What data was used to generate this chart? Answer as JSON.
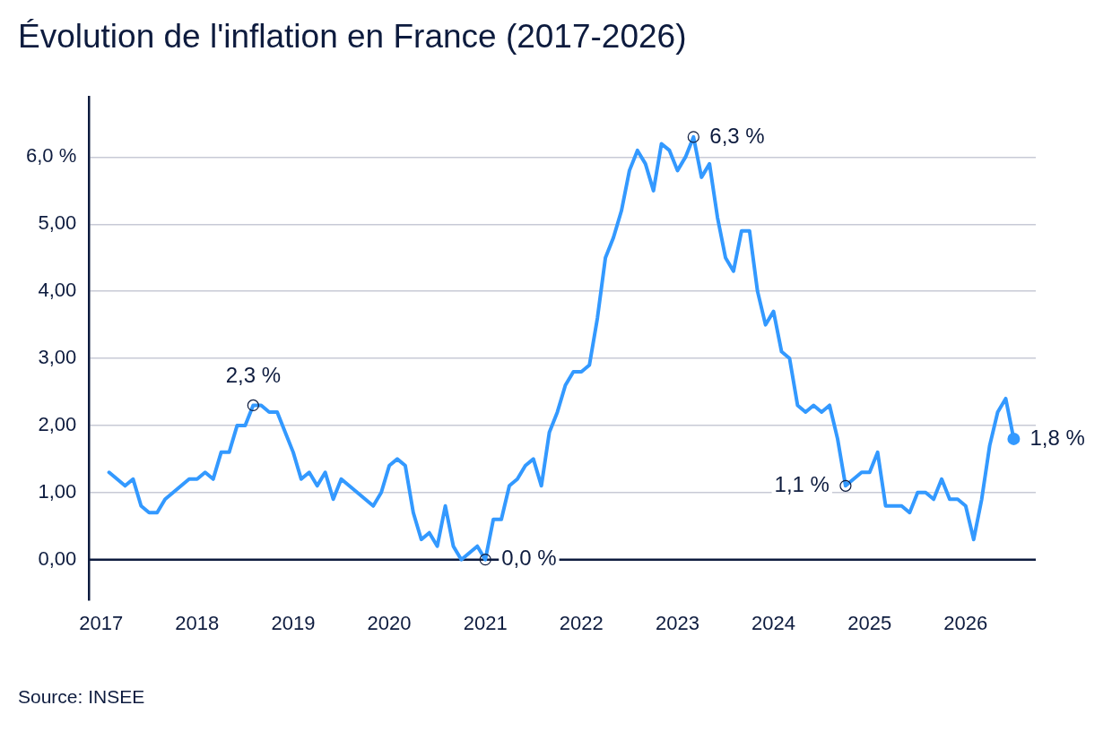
{
  "chart_data": {
    "type": "line",
    "title": "Évolution de l'inflation en France (2017-2026)",
    "x": [
      "2017-02",
      "2017-03",
      "2017-04",
      "2017-05",
      "2017-06",
      "2017-07",
      "2017-08",
      "2017-09",
      "2017-10",
      "2017-11",
      "2017-12",
      "2018-01",
      "2018-02",
      "2018-03",
      "2018-04",
      "2018-05",
      "2018-06",
      "2018-07",
      "2018-08",
      "2018-09",
      "2018-10",
      "2018-11",
      "2018-12",
      "2019-01",
      "2019-02",
      "2019-03",
      "2019-04",
      "2019-05",
      "2019-06",
      "2019-07",
      "2019-08",
      "2019-09",
      "2019-10",
      "2019-11",
      "2019-12",
      "2020-01",
      "2020-02",
      "2020-03",
      "2020-04",
      "2020-05",
      "2020-06",
      "2020-07",
      "2020-08",
      "2020-09",
      "2020-10",
      "2020-11",
      "2020-12",
      "2021-01",
      "2021-02",
      "2021-03",
      "2021-04",
      "2021-05",
      "2021-06",
      "2021-07",
      "2021-08",
      "2021-09",
      "2021-10",
      "2021-11",
      "2021-12",
      "2022-01",
      "2022-02",
      "2022-03",
      "2022-04",
      "2022-05",
      "2022-06",
      "2022-07",
      "2022-08",
      "2022-09",
      "2022-10",
      "2022-11",
      "2022-12",
      "2023-01",
      "2023-02",
      "2023-03",
      "2023-04",
      "2023-05",
      "2023-06",
      "2023-07",
      "2023-08",
      "2023-09",
      "2023-10",
      "2023-11",
      "2023-12",
      "2024-01",
      "2024-02",
      "2024-03",
      "2024-04",
      "2024-05",
      "2024-06",
      "2024-07",
      "2024-08",
      "2024-09",
      "2024-10",
      "2024-11",
      "2024-12",
      "2025-01",
      "2025-02",
      "2025-03",
      "2025-04",
      "2025-05",
      "2025-06",
      "2025-07",
      "2025-08",
      "2025-09",
      "2025-10",
      "2025-11",
      "2025-12",
      "2026-01",
      "2026-02",
      "2026-03",
      "2026-04",
      "2026-05",
      "2026-06",
      "2026-07"
    ],
    "series": [
      {
        "color": "#3399ff",
        "values": [
          1.3,
          1.2,
          1.1,
          1.2,
          0.8,
          0.7,
          0.7,
          0.9,
          1.0,
          1.1,
          1.2,
          1.2,
          1.3,
          1.2,
          1.6,
          1.6,
          2.0,
          2.0,
          2.3,
          2.3,
          2.2,
          2.2,
          1.9,
          1.6,
          1.2,
          1.3,
          1.1,
          1.3,
          0.9,
          1.2,
          1.1,
          1.0,
          0.9,
          0.8,
          1.0,
          1.4,
          1.5,
          1.4,
          0.7,
          0.3,
          0.4,
          0.2,
          0.8,
          0.2,
          0.0,
          0.1,
          0.2,
          0.0,
          0.6,
          0.6,
          1.1,
          1.2,
          1.4,
          1.5,
          1.1,
          1.9,
          2.2,
          2.6,
          2.8,
          2.8,
          2.9,
          3.6,
          4.5,
          4.8,
          5.2,
          5.8,
          6.1,
          5.9,
          5.5,
          6.2,
          6.1,
          5.8,
          6.0,
          6.3,
          5.7,
          5.9,
          5.1,
          4.5,
          4.3,
          4.9,
          4.9,
          4.0,
          3.5,
          3.7,
          3.1,
          3.0,
          2.3,
          2.2,
          2.3,
          2.2,
          2.3,
          1.8,
          1.1,
          1.2,
          1.3,
          1.3,
          1.6,
          0.8,
          0.8,
          0.8,
          0.7,
          1.0,
          1.0,
          0.9,
          1.2,
          0.9,
          0.9,
          0.8,
          0.3,
          0.9,
          1.7,
          2.2,
          2.4,
          1.8
        ]
      }
    ],
    "xlim": [
      "2016-11-16",
      "2026-09-24"
    ],
    "xticks": [
      "2017",
      "2018",
      "2019",
      "2020",
      "2021",
      "2022",
      "2023",
      "2024",
      "2025",
      "2026"
    ],
    "ylim": [
      -0.6,
      6.9
    ],
    "yticks": [
      {
        "value": 0,
        "label": "0,00"
      },
      {
        "value": 1,
        "label": "1,00"
      },
      {
        "value": 2,
        "label": "2,00"
      },
      {
        "value": 3,
        "label": "3,00"
      },
      {
        "value": 4,
        "label": "4,00"
      },
      {
        "value": 5,
        "label": "5,00"
      },
      {
        "value": 6,
        "label": "6,0 %"
      }
    ],
    "grid": "y",
    "marker": "none",
    "line_style": "solid",
    "ref_lines": [
      {
        "axis": "y",
        "value": 0,
        "color": "#0d1b3e"
      }
    ],
    "annotations": [
      {
        "text": "2,3 %",
        "x": "2018-08",
        "y": 2.3
      },
      {
        "text": "0,0 %",
        "x": "2021-01",
        "y": 0.0
      },
      {
        "text": "6,3 %",
        "x": "2023-03",
        "y": 6.3
      },
      {
        "text": "1,1 %",
        "x": "2024-10",
        "y": 1.1
      },
      {
        "text": "1,8 %",
        "x": "2026-07",
        "y": 1.8
      },
      "Source: INSEE"
    ]
  }
}
